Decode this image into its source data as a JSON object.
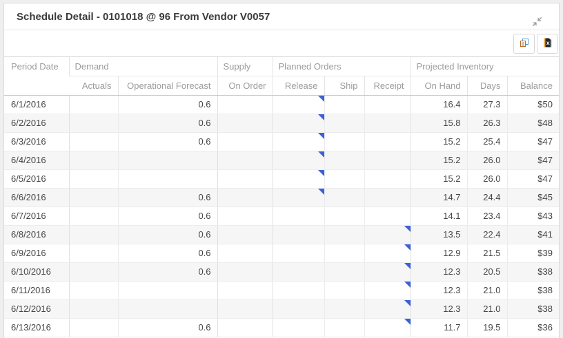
{
  "panel": {
    "title": "Schedule Detail - 0101018 @ 96 From Vendor V0057"
  },
  "icons": {
    "collapse": "collapse-arrows-icon",
    "copy_grid": "copy-grid-icon",
    "export_excel": "export-excel-icon",
    "cell_flag": "note-flag-icon"
  },
  "colors": {
    "flag_blue": "#3A61D9",
    "header_text": "#9B9B9B",
    "body_text": "#454545",
    "row_stripe": "#F6F6F6"
  },
  "table": {
    "group_headers": [
      {
        "label": "Period Date"
      },
      {
        "label": "Demand"
      },
      {
        "label": "Supply"
      },
      {
        "label": "Planned Orders"
      },
      {
        "label": "Projected Inventory"
      }
    ],
    "sub_headers": [
      "Actuals",
      "Operational Forecast",
      "On Order",
      "Release",
      "Ship",
      "Receipt",
      "On Hand",
      "Days",
      "Balance"
    ],
    "rows": [
      {
        "date": "6/1/2016",
        "actuals": "",
        "forecast": "0.6",
        "on_order": "",
        "release": "",
        "ship": "",
        "receipt": "",
        "on_hand": "16.4",
        "days": "27.3",
        "balance": "$50",
        "release_flag": true,
        "receipt_flag": false
      },
      {
        "date": "6/2/2016",
        "actuals": "",
        "forecast": "0.6",
        "on_order": "",
        "release": "",
        "ship": "",
        "receipt": "",
        "on_hand": "15.8",
        "days": "26.3",
        "balance": "$48",
        "release_flag": true,
        "receipt_flag": false
      },
      {
        "date": "6/3/2016",
        "actuals": "",
        "forecast": "0.6",
        "on_order": "",
        "release": "",
        "ship": "",
        "receipt": "",
        "on_hand": "15.2",
        "days": "25.4",
        "balance": "$47",
        "release_flag": true,
        "receipt_flag": false
      },
      {
        "date": "6/4/2016",
        "actuals": "",
        "forecast": "",
        "on_order": "",
        "release": "",
        "ship": "",
        "receipt": "",
        "on_hand": "15.2",
        "days": "26.0",
        "balance": "$47",
        "release_flag": true,
        "receipt_flag": false
      },
      {
        "date": "6/5/2016",
        "actuals": "",
        "forecast": "",
        "on_order": "",
        "release": "",
        "ship": "",
        "receipt": "",
        "on_hand": "15.2",
        "days": "26.0",
        "balance": "$47",
        "release_flag": true,
        "receipt_flag": false
      },
      {
        "date": "6/6/2016",
        "actuals": "",
        "forecast": "0.6",
        "on_order": "",
        "release": "",
        "ship": "",
        "receipt": "",
        "on_hand": "14.7",
        "days": "24.4",
        "balance": "$45",
        "release_flag": true,
        "receipt_flag": false
      },
      {
        "date": "6/7/2016",
        "actuals": "",
        "forecast": "0.6",
        "on_order": "",
        "release": "",
        "ship": "",
        "receipt": "",
        "on_hand": "14.1",
        "days": "23.4",
        "balance": "$43",
        "release_flag": false,
        "receipt_flag": false
      },
      {
        "date": "6/8/2016",
        "actuals": "",
        "forecast": "0.6",
        "on_order": "",
        "release": "",
        "ship": "",
        "receipt": "",
        "on_hand": "13.5",
        "days": "22.4",
        "balance": "$41",
        "release_flag": false,
        "receipt_flag": true
      },
      {
        "date": "6/9/2016",
        "actuals": "",
        "forecast": "0.6",
        "on_order": "",
        "release": "",
        "ship": "",
        "receipt": "",
        "on_hand": "12.9",
        "days": "21.5",
        "balance": "$39",
        "release_flag": false,
        "receipt_flag": true
      },
      {
        "date": "6/10/2016",
        "actuals": "",
        "forecast": "0.6",
        "on_order": "",
        "release": "",
        "ship": "",
        "receipt": "",
        "on_hand": "12.3",
        "days": "20.5",
        "balance": "$38",
        "release_flag": false,
        "receipt_flag": true
      },
      {
        "date": "6/11/2016",
        "actuals": "",
        "forecast": "",
        "on_order": "",
        "release": "",
        "ship": "",
        "receipt": "",
        "on_hand": "12.3",
        "days": "21.0",
        "balance": "$38",
        "release_flag": false,
        "receipt_flag": true
      },
      {
        "date": "6/12/2016",
        "actuals": "",
        "forecast": "",
        "on_order": "",
        "release": "",
        "ship": "",
        "receipt": "",
        "on_hand": "12.3",
        "days": "21.0",
        "balance": "$38",
        "release_flag": false,
        "receipt_flag": true
      },
      {
        "date": "6/13/2016",
        "actuals": "",
        "forecast": "0.6",
        "on_order": "",
        "release": "",
        "ship": "",
        "receipt": "",
        "on_hand": "11.7",
        "days": "19.5",
        "balance": "$36",
        "release_flag": false,
        "receipt_flag": true
      }
    ]
  }
}
